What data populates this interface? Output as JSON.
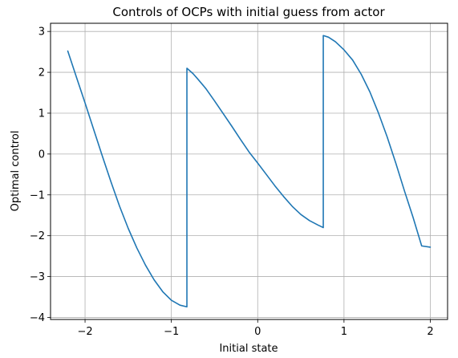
{
  "chart_data": {
    "type": "line",
    "title": "Controls of OCPs with initial guess from actor",
    "xlabel": "Initial state",
    "ylabel": "Optimal control",
    "xlim": [
      -2.4,
      2.2
    ],
    "ylim": [
      -4.05,
      3.2
    ],
    "x_ticks": [
      -2,
      -1,
      0,
      1,
      2
    ],
    "x_tick_labels": [
      "−2",
      "−1",
      "0",
      "1",
      "2"
    ],
    "y_ticks": [
      -4,
      -3,
      -2,
      -1,
      0,
      1,
      2,
      3
    ],
    "y_tick_labels": [
      "−4",
      "−3",
      "−2",
      "−1",
      "0",
      "1",
      "2",
      "3"
    ],
    "grid": true,
    "legend": "none",
    "line_color": "#1f77b4",
    "series": [
      {
        "x": [
          -2.2,
          -2.1,
          -2.0,
          -1.9,
          -1.8,
          -1.7,
          -1.6,
          -1.5,
          -1.4,
          -1.3,
          -1.2,
          -1.1,
          -1.0,
          -0.9,
          -0.82,
          -0.82,
          -0.75,
          -0.7,
          -0.6,
          -0.5,
          -0.4,
          -0.3,
          -0.2,
          -0.1,
          0.0,
          0.1,
          0.2,
          0.3,
          0.4,
          0.5,
          0.6,
          0.7,
          0.76,
          0.76,
          0.82,
          0.9,
          1.0,
          1.1,
          1.2,
          1.3,
          1.4,
          1.5,
          1.6,
          1.7,
          1.8,
          1.9,
          2.0
        ],
        "y": [
          2.52,
          1.88,
          1.25,
          0.6,
          -0.05,
          -0.68,
          -1.28,
          -1.82,
          -2.3,
          -2.72,
          -3.08,
          -3.37,
          -3.58,
          -3.7,
          -3.74,
          2.1,
          1.97,
          1.85,
          1.6,
          1.3,
          0.99,
          0.68,
          0.36,
          0.05,
          -0.22,
          -0.5,
          -0.78,
          -1.04,
          -1.28,
          -1.48,
          -1.63,
          -1.74,
          -1.8,
          2.9,
          2.86,
          2.75,
          2.55,
          2.3,
          1.95,
          1.52,
          1.0,
          0.42,
          -0.22,
          -0.9,
          -1.55,
          -2.25,
          -2.28
        ]
      }
    ]
  }
}
